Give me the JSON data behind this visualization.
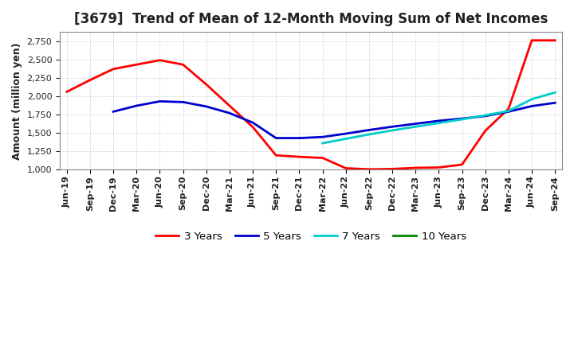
{
  "title": "[3679]  Trend of Mean of 12-Month Moving Sum of Net Incomes",
  "ylabel": "Amount (million yen)",
  "ylim": [
    1000,
    2875
  ],
  "yticks": [
    1000,
    1250,
    1500,
    1750,
    2000,
    2250,
    2500,
    2750
  ],
  "background_color": "#ffffff",
  "grid_color": "#bbbbbb",
  "x_labels": [
    "Jun-19",
    "Sep-19",
    "Dec-19",
    "Mar-20",
    "Jun-20",
    "Sep-20",
    "Dec-20",
    "Mar-21",
    "Jun-21",
    "Sep-21",
    "Dec-21",
    "Mar-22",
    "Jun-22",
    "Sep-22",
    "Dec-22",
    "Mar-23",
    "Jun-23",
    "Sep-23",
    "Dec-23",
    "Mar-24",
    "Jun-24",
    "Sep-24"
  ],
  "series_3y": {
    "label": "3 Years",
    "color": "#ff0000",
    "x": [
      0,
      1,
      2,
      3,
      4,
      5,
      6,
      7,
      8,
      9,
      10,
      11,
      12,
      13,
      14,
      15,
      16,
      17,
      18,
      19,
      20,
      21
    ],
    "y": [
      2060,
      2220,
      2370,
      2430,
      2490,
      2430,
      2160,
      1870,
      1580,
      1195,
      1175,
      1160,
      1020,
      1005,
      1010,
      1025,
      1030,
      1070,
      1530,
      1830,
      2760,
      2760
    ]
  },
  "series_5y": {
    "label": "5 Years",
    "color": "#0000cc",
    "x": [
      2,
      3,
      4,
      5,
      6,
      7,
      8,
      9,
      10,
      11,
      12,
      13,
      14,
      15,
      16,
      17,
      18,
      19,
      20,
      21
    ],
    "y": [
      1790,
      1870,
      1930,
      1920,
      1860,
      1770,
      1640,
      1430,
      1430,
      1445,
      1490,
      1540,
      1585,
      1625,
      1665,
      1695,
      1730,
      1790,
      1865,
      1910
    ]
  },
  "series_7y": {
    "label": "7 Years",
    "color": "#00cccc",
    "x": [
      11,
      12,
      13,
      14,
      15,
      16,
      17,
      18,
      19,
      20,
      21
    ],
    "y": [
      1360,
      1420,
      1480,
      1535,
      1585,
      1635,
      1685,
      1740,
      1800,
      1960,
      2050
    ]
  },
  "series_10y": {
    "label": "10 Years",
    "color": "#008800",
    "x": [],
    "y": []
  },
  "line_width": 2.0,
  "title_fontsize": 12,
  "tick_fontsize": 8,
  "legend_fontsize": 9.5
}
